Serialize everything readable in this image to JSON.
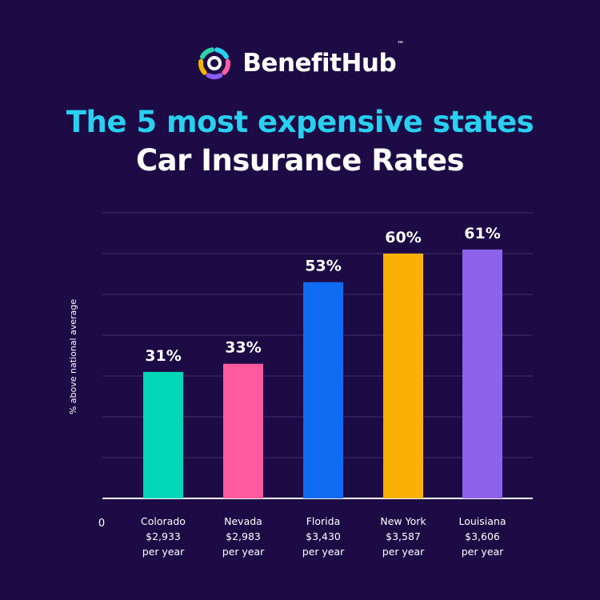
{
  "brand": {
    "name": "BenefitHub",
    "tm": "™",
    "logo_colors": [
      "#29d0f0",
      "#ff5fa2",
      "#8b5cf6",
      "#f5b400",
      "#2dd4a8"
    ]
  },
  "title": "The 5 most expensive states",
  "subtitle": "Car Insurance Rates",
  "chart_data": {
    "type": "bar",
    "title": "The 5 most expensive states",
    "subtitle": "Car Insurance Rates",
    "ylabel": "% above national average",
    "xlabel": "",
    "y_tick_labels": [
      "0"
    ],
    "ylim": [
      0,
      70
    ],
    "grid": true,
    "categories": [
      "Colorado",
      "Nevada",
      "Florida",
      "New York",
      "Louisiana"
    ],
    "cost_labels": [
      "$2,933",
      "$2,983",
      "$3,430",
      "$3,587",
      "$3,606"
    ],
    "period_label": "per year",
    "values": [
      31,
      33,
      53,
      60,
      61
    ],
    "value_labels": [
      "31%",
      "33%",
      "53%",
      "60%",
      "61%"
    ],
    "colors": [
      "#00d7b9",
      "#ff5a9f",
      "#0f6cf2",
      "#fab005",
      "#8d62ea"
    ],
    "gridline_color": "#3e2f6c",
    "axis_color": "#ffffff"
  }
}
